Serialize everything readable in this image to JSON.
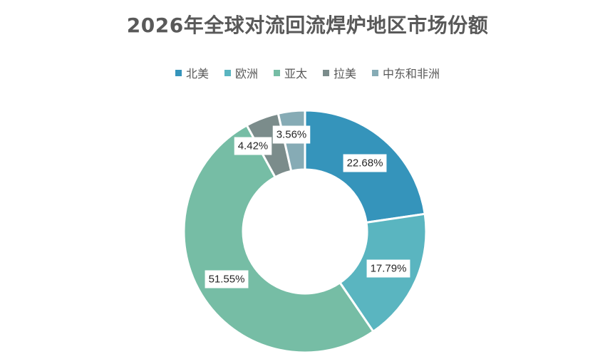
{
  "chart_data": {
    "type": "pie",
    "subtype": "donut",
    "title": "2026年全球对流回流焊炉地区市场份额",
    "legend_position": "top",
    "categories": [
      "北美",
      "欧洲",
      "亚太",
      "拉美",
      "中东和非洲"
    ],
    "values": [
      22.68,
      17.79,
      51.55,
      4.42,
      3.56
    ],
    "labels": [
      "22.68%",
      "17.79%",
      "51.55%",
      "4.42%",
      "3.56%"
    ],
    "colors": [
      "#3594BB",
      "#5AB5C0",
      "#76BDA5",
      "#7B8C8B",
      "#86ABB5"
    ]
  }
}
